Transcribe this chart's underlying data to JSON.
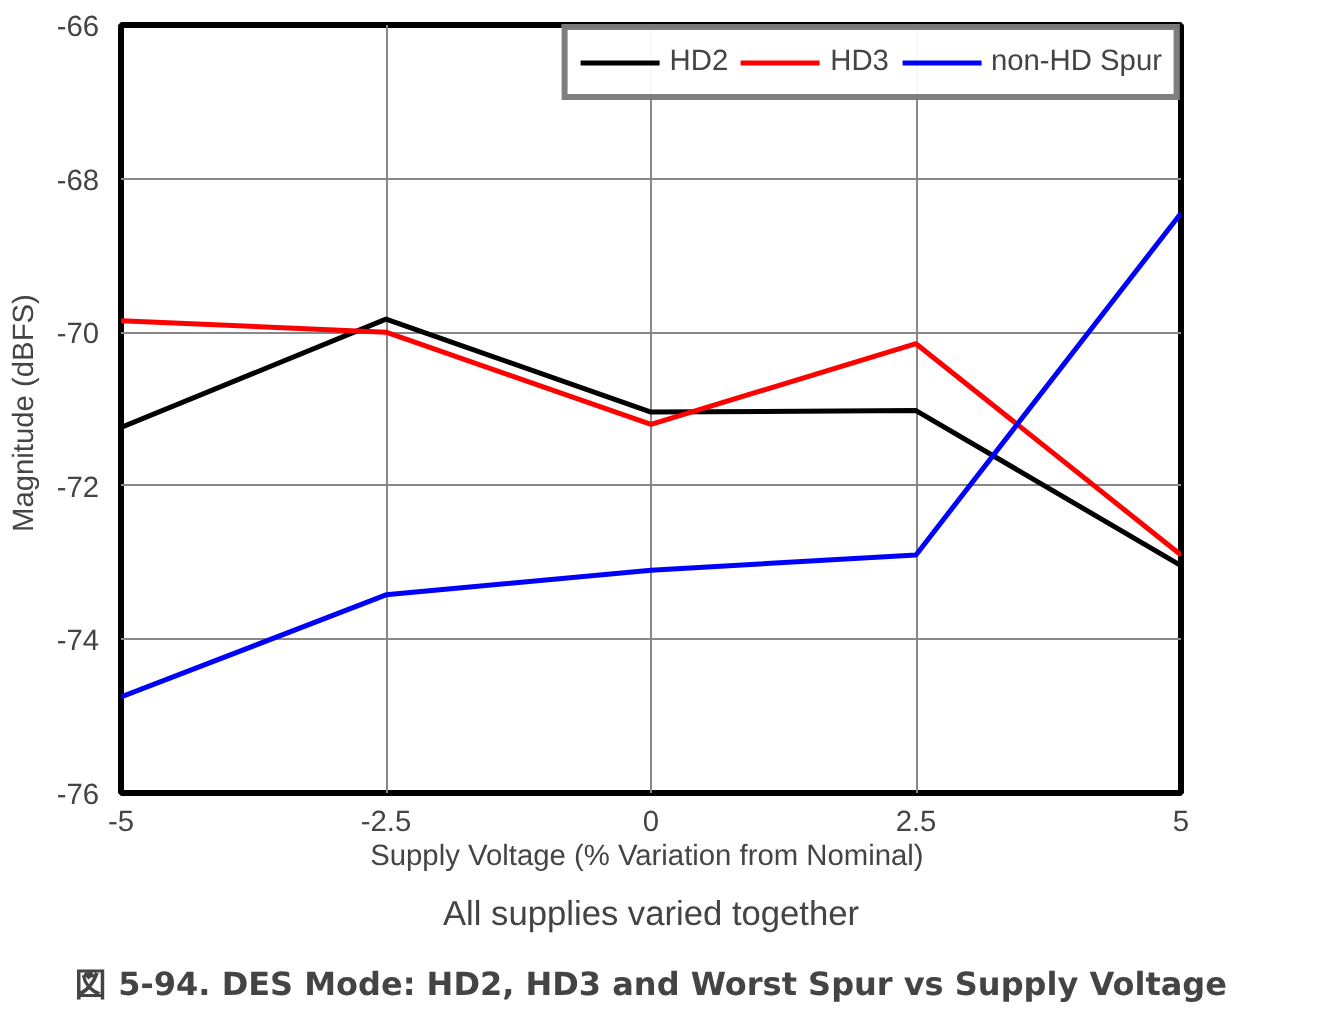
{
  "chart_data": {
    "type": "line",
    "title": "図 5-94. DES Mode: HD2, HD3 and Worst Spur vs Supply Voltage",
    "xlabel": "Supply Voltage  (% Variation from Nominal)",
    "ylabel": "Magnitude  (dBFS)",
    "annotations": [
      "All supplies varied together"
    ],
    "x": [
      -5,
      -2.5,
      0,
      2.5,
      5
    ],
    "series": [
      {
        "name": "HD2",
        "color": "#000000",
        "values": [
          -71.24,
          -69.83,
          -71.04,
          -71.02,
          -73.04
        ]
      },
      {
        "name": "HD3",
        "color": "#ff0000",
        "values": [
          -69.85,
          -70.0,
          -71.2,
          -70.15,
          -72.9
        ]
      },
      {
        "name": "non-HD Spur",
        "color": "#0000ff",
        "values": [
          -74.75,
          -73.42,
          -73.1,
          -72.9,
          -68.45
        ]
      }
    ],
    "xlim": [
      -5,
      5
    ],
    "xticks": [
      -5,
      -2.5,
      0,
      2.5,
      5
    ],
    "ylim": [
      -76,
      -66
    ],
    "yticks": [
      -76,
      -74,
      -72,
      -70,
      -68,
      -66
    ],
    "grid": true,
    "legend": "top right",
    "marker": "none",
    "line_style": "solid"
  }
}
